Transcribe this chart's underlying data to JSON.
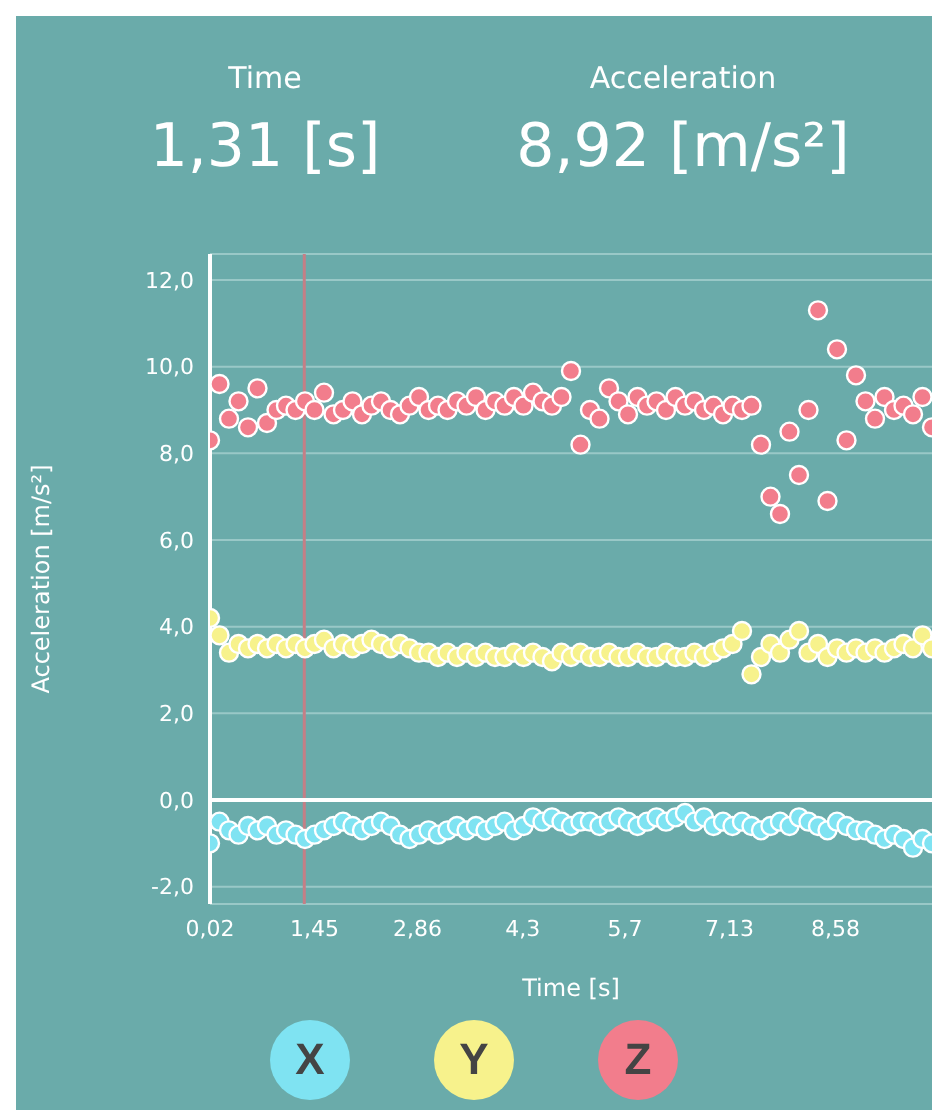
{
  "chart_data": {
    "type": "scatter",
    "xlabel": "Time [s]",
    "ylabel": "Acceleration [m/s²]",
    "annotations": [
      "Time",
      "1,31 [s]",
      "Acceleration",
      "8,92 [m/s²]"
    ],
    "x": [
      0.02,
      0.15,
      0.28,
      0.41,
      0.54,
      0.67,
      0.8,
      0.93,
      1.06,
      1.19,
      1.32,
      1.45,
      1.58,
      1.71,
      1.84,
      1.97,
      2.1,
      2.23,
      2.36,
      2.49,
      2.62,
      2.75,
      2.88,
      3.01,
      3.14,
      3.27,
      3.4,
      3.53,
      3.66,
      3.79,
      3.92,
      4.05,
      4.18,
      4.31,
      4.44,
      4.57,
      4.7,
      4.83,
      4.96,
      5.09,
      5.22,
      5.35,
      5.48,
      5.61,
      5.74,
      5.87,
      6.0,
      6.13,
      6.26,
      6.39,
      6.52,
      6.65,
      6.78,
      6.91,
      7.04,
      7.17,
      7.3,
      7.43,
      7.56,
      7.69,
      7.82,
      7.95,
      8.08,
      8.21,
      8.34,
      8.47,
      8.6,
      8.73,
      8.86,
      8.99,
      9.12,
      9.25,
      9.38,
      9.51,
      9.64,
      9.77,
      9.9
    ],
    "series": [
      {
        "name": "X",
        "color": "#7fe3f2",
        "values": [
          -1.0,
          -0.5,
          -0.7,
          -0.8,
          -0.6,
          -0.7,
          -0.6,
          -0.8,
          -0.7,
          -0.8,
          -0.9,
          -0.8,
          -0.7,
          -0.6,
          -0.5,
          -0.6,
          -0.7,
          -0.6,
          -0.5,
          -0.6,
          -0.8,
          -0.9,
          -0.8,
          -0.7,
          -0.8,
          -0.7,
          -0.6,
          -0.7,
          -0.6,
          -0.7,
          -0.6,
          -0.5,
          -0.7,
          -0.6,
          -0.4,
          -0.5,
          -0.4,
          -0.5,
          -0.6,
          -0.5,
          -0.5,
          -0.6,
          -0.5,
          -0.4,
          -0.5,
          -0.6,
          -0.5,
          -0.4,
          -0.5,
          -0.4,
          -0.3,
          -0.5,
          -0.4,
          -0.6,
          -0.5,
          -0.6,
          -0.5,
          -0.6,
          -0.7,
          -0.6,
          -0.5,
          -0.6,
          -0.4,
          -0.5,
          -0.6,
          -0.7,
          -0.5,
          -0.6,
          -0.7,
          -0.7,
          -0.8,
          -0.9,
          -0.8,
          -0.9,
          -1.1,
          -0.9,
          -1.0
        ]
      },
      {
        "name": "Y",
        "color": "#f7f28c",
        "values": [
          4.2,
          3.8,
          3.4,
          3.6,
          3.5,
          3.6,
          3.5,
          3.6,
          3.5,
          3.6,
          3.5,
          3.6,
          3.7,
          3.5,
          3.6,
          3.5,
          3.6,
          3.7,
          3.6,
          3.5,
          3.6,
          3.5,
          3.4,
          3.4,
          3.3,
          3.4,
          3.3,
          3.4,
          3.3,
          3.4,
          3.3,
          3.3,
          3.4,
          3.3,
          3.4,
          3.3,
          3.2,
          3.4,
          3.3,
          3.4,
          3.3,
          3.3,
          3.4,
          3.3,
          3.3,
          3.4,
          3.3,
          3.3,
          3.4,
          3.3,
          3.3,
          3.4,
          3.3,
          3.4,
          3.5,
          3.6,
          3.9,
          2.9,
          3.3,
          3.6,
          3.4,
          3.7,
          3.9,
          3.4,
          3.6,
          3.3,
          3.5,
          3.4,
          3.5,
          3.4,
          3.5,
          3.4,
          3.5,
          3.6,
          3.5,
          3.8,
          3.5
        ]
      },
      {
        "name": "Z",
        "color": "#f27d8c",
        "values": [
          8.3,
          9.6,
          8.8,
          9.2,
          8.6,
          9.5,
          8.7,
          9.0,
          9.1,
          9.0,
          9.2,
          9.0,
          9.4,
          8.9,
          9.0,
          9.2,
          8.9,
          9.1,
          9.2,
          9.0,
          8.9,
          9.1,
          9.3,
          9.0,
          9.1,
          9.0,
          9.2,
          9.1,
          9.3,
          9.0,
          9.2,
          9.1,
          9.3,
          9.1,
          9.4,
          9.2,
          9.1,
          9.3,
          9.9,
          8.2,
          9.0,
          8.8,
          9.5,
          9.2,
          8.9,
          9.3,
          9.1,
          9.2,
          9.0,
          9.3,
          9.1,
          9.2,
          9.0,
          9.1,
          8.9,
          9.1,
          9.0,
          9.1,
          8.2,
          7.0,
          6.6,
          8.5,
          7.5,
          9.0,
          11.3,
          6.9,
          10.4,
          8.3,
          9.8,
          9.2,
          8.8,
          9.3,
          9.0,
          9.1,
          8.9,
          9.3,
          8.6
        ]
      }
    ],
    "xlim": [
      0.02,
      9.9
    ],
    "xticks": [
      {
        "value": 0.02,
        "label": "0,02"
      },
      {
        "value": 1.45,
        "label": "1,45"
      },
      {
        "value": 2.86,
        "label": "2,86"
      },
      {
        "value": 4.3,
        "label": "4,3"
      },
      {
        "value": 5.7,
        "label": "5,7"
      },
      {
        "value": 7.13,
        "label": "7,13"
      },
      {
        "value": 8.58,
        "label": "8,58"
      }
    ],
    "ylim": [
      -2.4,
      12.6
    ],
    "yticks": [
      {
        "value": -2,
        "label": "-2,0"
      },
      {
        "value": 0,
        "label": "0,0"
      },
      {
        "value": 2,
        "label": "2,0"
      },
      {
        "value": 4,
        "label": "4,0"
      },
      {
        "value": 6,
        "label": "6,0"
      },
      {
        "value": 8,
        "label": "8,0"
      },
      {
        "value": 10,
        "label": "10,0"
      },
      {
        "value": 12,
        "label": "12,0"
      }
    ],
    "ref_lines": [
      {
        "axis": "x",
        "value": 1.31,
        "color": "#c47f86"
      },
      {
        "axis": "y",
        "value": 0,
        "color": "#ffffff"
      }
    ],
    "grid": "y",
    "legend": "bottom",
    "marker": "circle"
  }
}
